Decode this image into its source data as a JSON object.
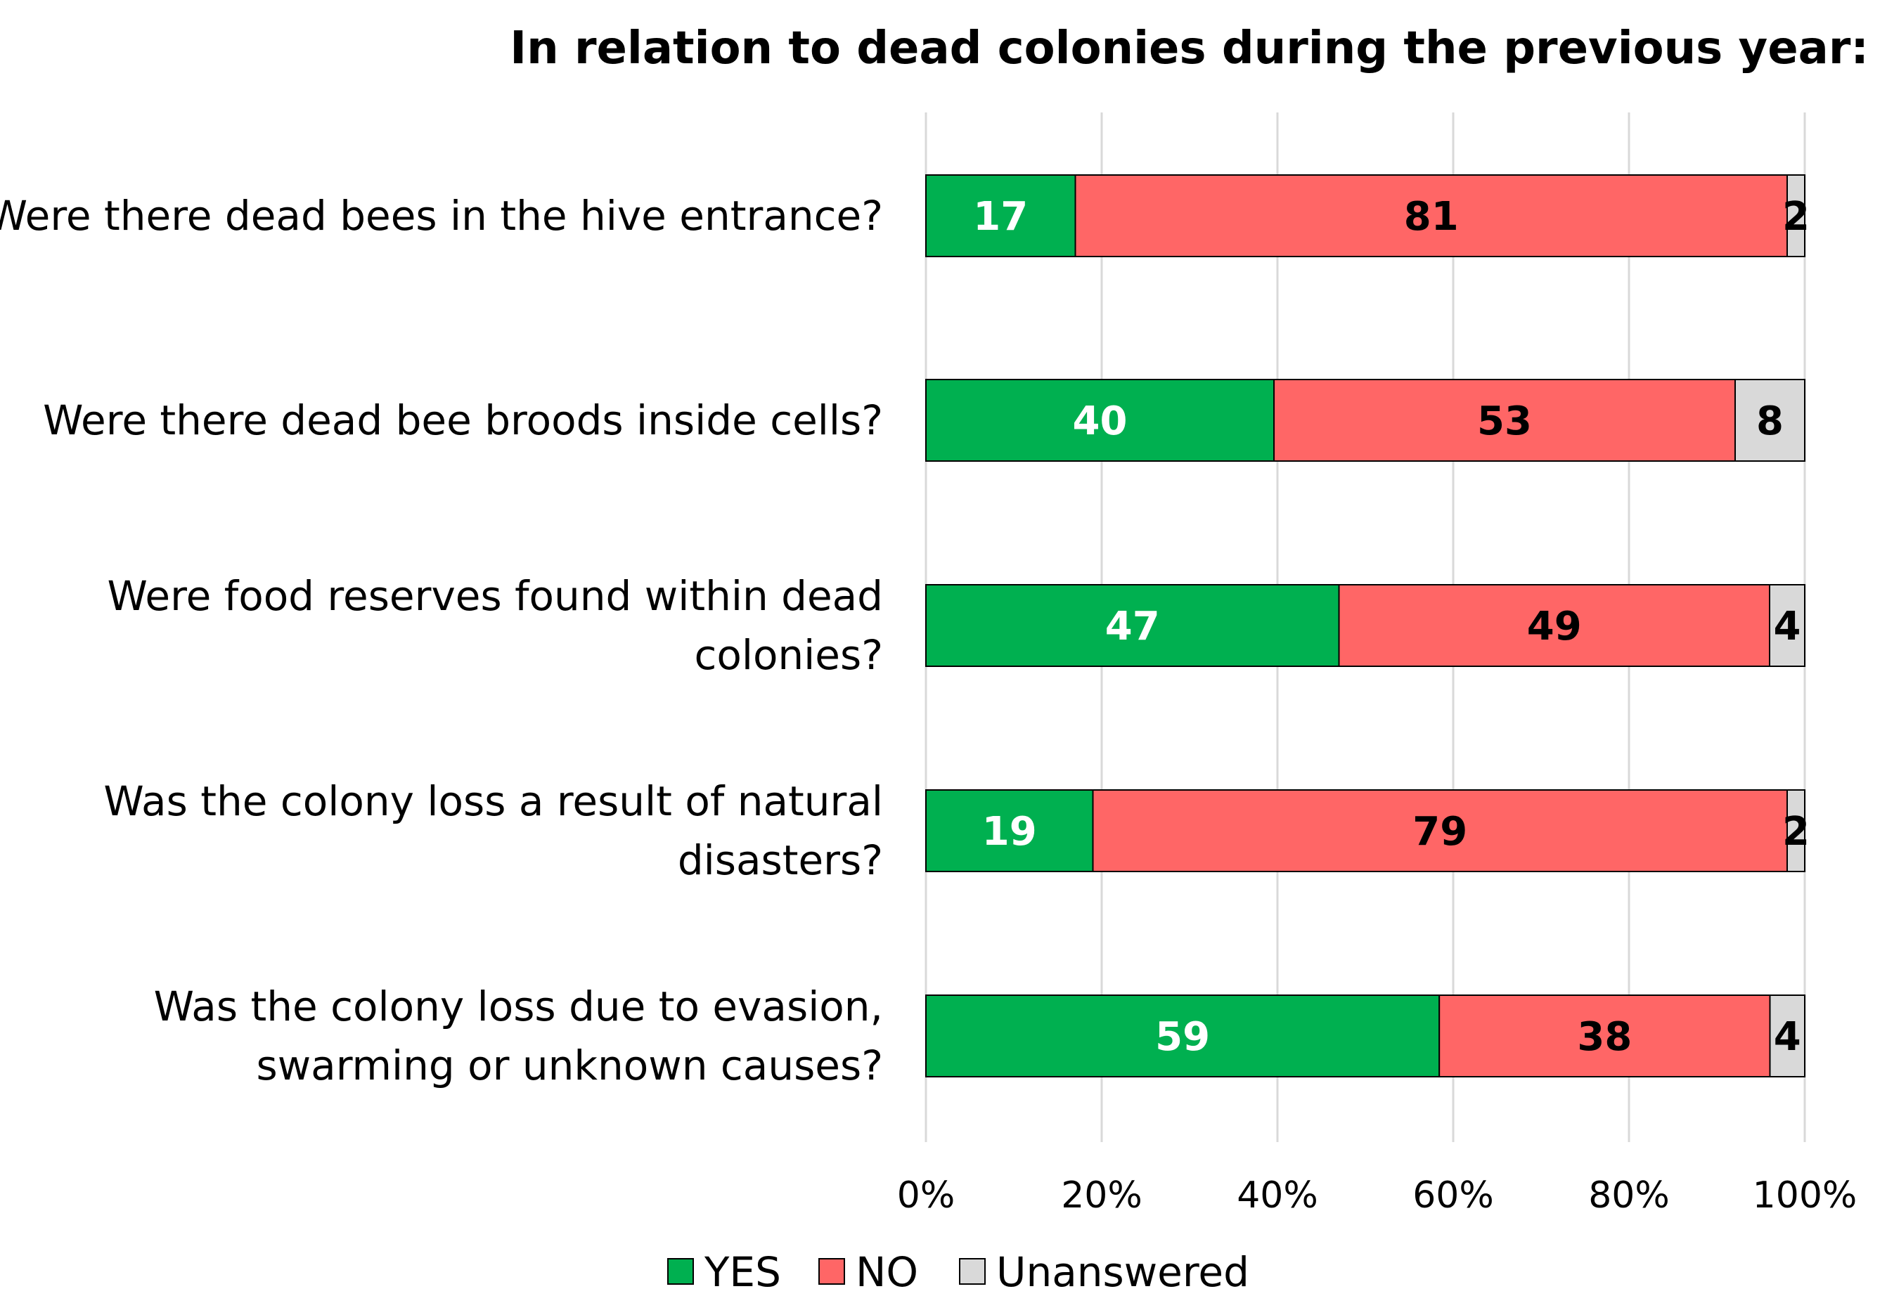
{
  "chart_data": {
    "type": "bar",
    "orientation": "horizontal",
    "stacked": "percent",
    "title": "In relation to dead colonies during the previous year:",
    "categories": [
      "Were there dead bees in the hive entrance?",
      "Were there dead bee broods inside cells?",
      "Were food reserves found within dead colonies?",
      "Was the colony loss a result of natural disasters?",
      "Was the colony loss due to evasion, swarming or unknown causes?"
    ],
    "category_lines": [
      [
        "Were there dead bees in the hive entrance?"
      ],
      [
        "Were there dead bee broods inside cells?"
      ],
      [
        "Were food reserves found within dead",
        "colonies?"
      ],
      [
        "Was the colony loss a result of natural",
        "disasters?"
      ],
      [
        "Was the colony loss due to evasion,",
        "swarming or unknown causes?"
      ]
    ],
    "series": [
      {
        "name": "YES",
        "color": "#00B050",
        "label_color": "#FFFFFF",
        "values": [
          17,
          40,
          47,
          19,
          59
        ],
        "labels": [
          "17",
          "40",
          "47",
          "19",
          "59"
        ]
      },
      {
        "name": "NO",
        "color": "#FF6666",
        "label_color": "#000000",
        "values": [
          81,
          53,
          49,
          79,
          38
        ],
        "labels": [
          "81",
          "53",
          "49",
          "79",
          "38"
        ]
      },
      {
        "name": "Unanswered",
        "color": "#D9D9D9",
        "label_color": "#000000",
        "values": [
          2,
          8,
          4,
          2,
          4
        ],
        "labels": [
          "2",
          "8",
          "4",
          "2",
          "4"
        ]
      }
    ],
    "xlim": [
      0,
      100
    ],
    "x_ticks": [
      "0%",
      "20%",
      "40%",
      "60%",
      "80%",
      "100%"
    ],
    "grid": true,
    "legend": "bottom"
  }
}
